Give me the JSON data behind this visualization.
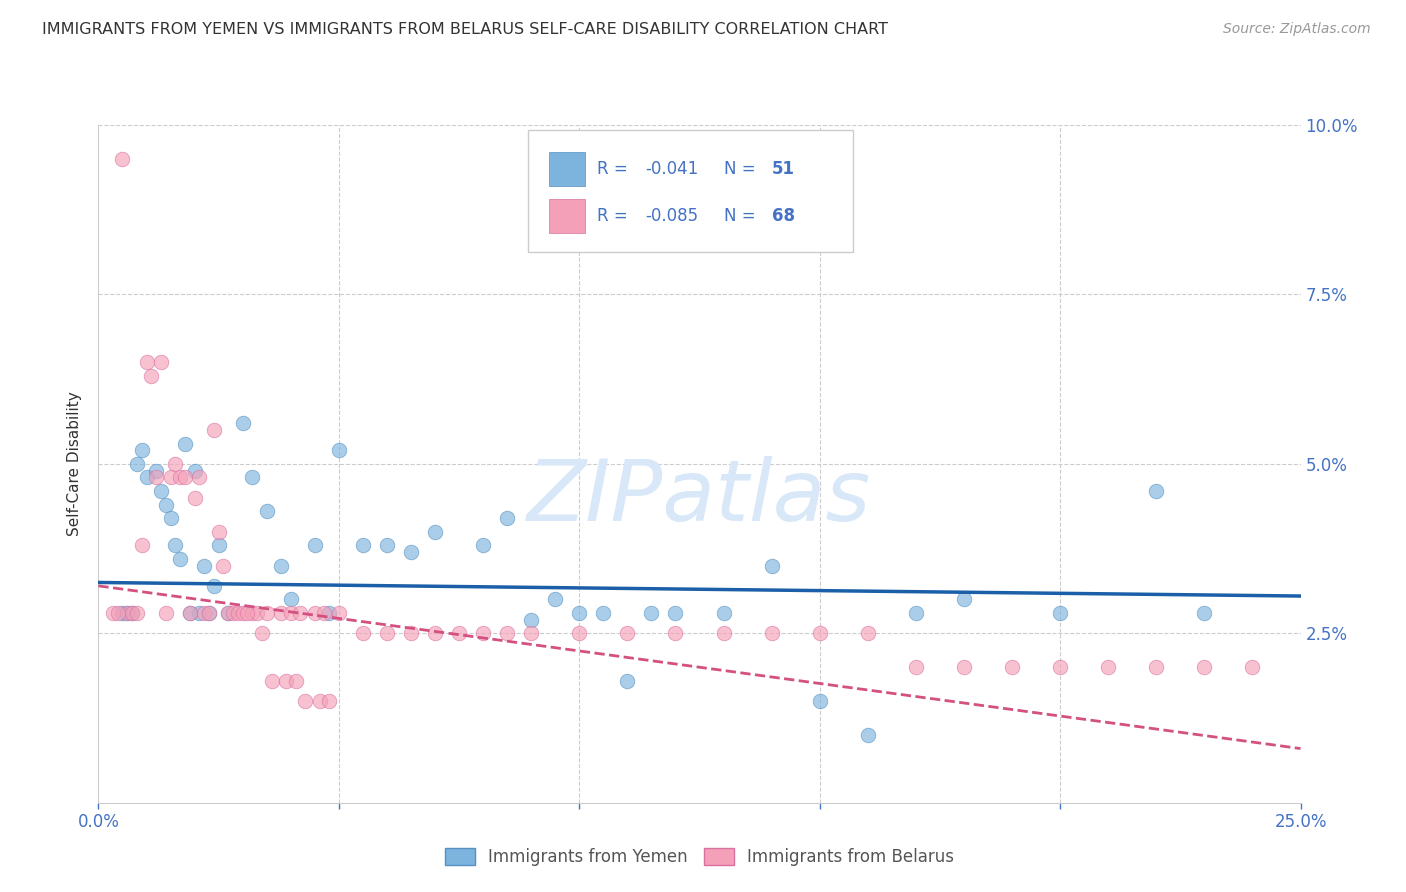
{
  "title": "IMMIGRANTS FROM YEMEN VS IMMIGRANTS FROM BELARUS SELF-CARE DISABILITY CORRELATION CHART",
  "source": "Source: ZipAtlas.com",
  "ylabel": "Self-Care Disability",
  "xlim": [
    0.0,
    0.25
  ],
  "ylim": [
    0.0,
    0.1
  ],
  "yticks": [
    0.0,
    0.025,
    0.05,
    0.075,
    0.1
  ],
  "ytick_labels_right": [
    "",
    "2.5%",
    "5.0%",
    "7.5%",
    "10.0%"
  ],
  "xticks": [
    0.0,
    0.05,
    0.1,
    0.15,
    0.2,
    0.25
  ],
  "xtick_labels": [
    "0.0%",
    "",
    "",
    "",
    "",
    "25.0%"
  ],
  "legend_r1": "-0.041",
  "legend_n1": "51",
  "legend_r2": "-0.085",
  "legend_n2": "68",
  "blue_scatter_color": "#7db4de",
  "blue_edge_color": "#5590c0",
  "pink_scatter_color": "#f4a0b8",
  "pink_edge_color": "#d870a0",
  "trend_blue_color": "#1a5fa8",
  "trend_pink_color": "#d45080",
  "title_color": "#333333",
  "source_color": "#999999",
  "tick_color": "#4472c4",
  "grid_color": "#cccccc",
  "watermark_color": "#d8e8f8",
  "legend_text_color": "#4472c4",
  "legend_border_color": "#cccccc",
  "bottom_legend_labels": [
    "Immigrants from Yemen",
    "Immigrants from Belarus"
  ],
  "yemen_x": [
    0.008,
    0.009,
    0.01,
    0.012,
    0.013,
    0.014,
    0.015,
    0.016,
    0.017,
    0.018,
    0.02,
    0.021,
    0.022,
    0.024,
    0.025,
    0.03,
    0.032,
    0.035,
    0.038,
    0.04,
    0.045,
    0.048,
    0.05,
    0.055,
    0.06,
    0.065,
    0.07,
    0.08,
    0.085,
    0.09,
    0.095,
    0.1,
    0.105,
    0.11,
    0.115,
    0.12,
    0.13,
    0.14,
    0.15,
    0.16,
    0.17,
    0.18,
    0.2,
    0.22,
    0.23,
    0.005,
    0.006,
    0.007,
    0.019,
    0.023,
    0.027
  ],
  "yemen_y": [
    0.05,
    0.052,
    0.048,
    0.049,
    0.046,
    0.044,
    0.042,
    0.038,
    0.036,
    0.053,
    0.049,
    0.028,
    0.035,
    0.032,
    0.038,
    0.056,
    0.048,
    0.043,
    0.035,
    0.03,
    0.038,
    0.028,
    0.052,
    0.038,
    0.038,
    0.037,
    0.04,
    0.038,
    0.042,
    0.027,
    0.03,
    0.028,
    0.028,
    0.018,
    0.028,
    0.028,
    0.028,
    0.035,
    0.015,
    0.01,
    0.028,
    0.03,
    0.028,
    0.046,
    0.028,
    0.028,
    0.028,
    0.028,
    0.028,
    0.028,
    0.028
  ],
  "belarus_x": [
    0.005,
    0.006,
    0.007,
    0.008,
    0.009,
    0.01,
    0.011,
    0.012,
    0.013,
    0.014,
    0.015,
    0.016,
    0.017,
    0.018,
    0.019,
    0.02,
    0.021,
    0.022,
    0.023,
    0.024,
    0.025,
    0.026,
    0.027,
    0.028,
    0.029,
    0.03,
    0.032,
    0.033,
    0.035,
    0.038,
    0.04,
    0.042,
    0.045,
    0.047,
    0.05,
    0.055,
    0.06,
    0.065,
    0.07,
    0.075,
    0.08,
    0.085,
    0.09,
    0.1,
    0.11,
    0.12,
    0.13,
    0.14,
    0.15,
    0.16,
    0.17,
    0.18,
    0.19,
    0.2,
    0.21,
    0.22,
    0.23,
    0.24,
    0.003,
    0.004,
    0.031,
    0.034,
    0.036,
    0.039,
    0.041,
    0.043,
    0.046,
    0.048
  ],
  "belarus_y": [
    0.095,
    0.028,
    0.028,
    0.028,
    0.038,
    0.065,
    0.063,
    0.048,
    0.065,
    0.028,
    0.048,
    0.05,
    0.048,
    0.048,
    0.028,
    0.045,
    0.048,
    0.028,
    0.028,
    0.055,
    0.04,
    0.035,
    0.028,
    0.028,
    0.028,
    0.028,
    0.028,
    0.028,
    0.028,
    0.028,
    0.028,
    0.028,
    0.028,
    0.028,
    0.028,
    0.025,
    0.025,
    0.025,
    0.025,
    0.025,
    0.025,
    0.025,
    0.025,
    0.025,
    0.025,
    0.025,
    0.025,
    0.025,
    0.025,
    0.025,
    0.02,
    0.02,
    0.02,
    0.02,
    0.02,
    0.02,
    0.02,
    0.02,
    0.028,
    0.028,
    0.028,
    0.025,
    0.018,
    0.018,
    0.018,
    0.015,
    0.015,
    0.015
  ],
  "trend_yemen": [
    0.0,
    0.25,
    0.0325,
    0.0305
  ],
  "trend_belarus": [
    0.0,
    0.25,
    0.032,
    0.008
  ]
}
